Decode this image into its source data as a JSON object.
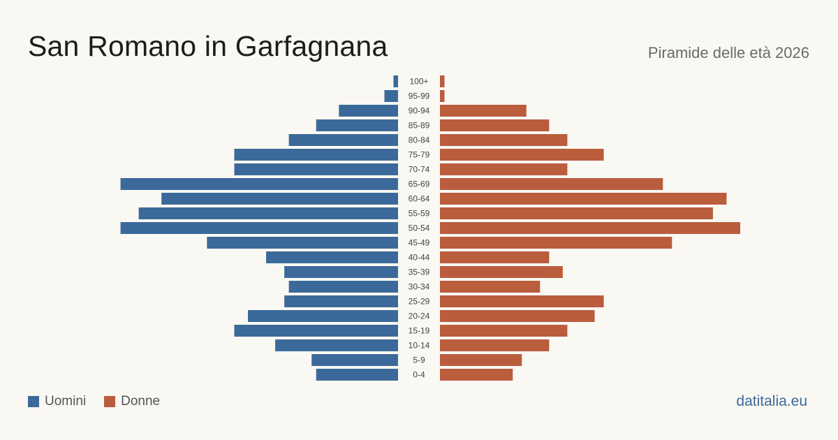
{
  "header": {
    "title": "San Romano in Garfagnana",
    "subtitle": "Piramide delle età 2026"
  },
  "legend": {
    "men_label": "Uomini",
    "women_label": "Donne"
  },
  "footer": {
    "source": "datitalia.eu"
  },
  "colors": {
    "men": "#3b6a9a",
    "women": "#b95d3d",
    "background": "#faf8f3"
  },
  "chart_data": {
    "type": "bar",
    "orientation": "horizontal-pyramid",
    "title": "San Romano in Garfagnana",
    "subtitle": "Piramide delle età 2026",
    "categories": [
      "100+",
      "95-99",
      "90-94",
      "85-89",
      "80-84",
      "75-79",
      "70-74",
      "65-69",
      "60-64",
      "55-59",
      "50-54",
      "45-49",
      "40-44",
      "35-39",
      "30-34",
      "25-29",
      "20-24",
      "15-19",
      "10-14",
      "5-9",
      "0-4"
    ],
    "series": [
      {
        "name": "Uomini",
        "values": [
          1,
          3,
          13,
          18,
          24,
          36,
          36,
          61,
          52,
          57,
          61,
          42,
          29,
          25,
          24,
          25,
          33,
          36,
          27,
          19,
          18
        ]
      },
      {
        "name": "Donne",
        "values": [
          1,
          1,
          19,
          24,
          28,
          36,
          28,
          49,
          63,
          60,
          66,
          51,
          24,
          27,
          22,
          36,
          34,
          28,
          24,
          18,
          16
        ]
      }
    ],
    "xlim": [
      0,
      66
    ],
    "grid": false,
    "legend_position": "bottom-left"
  }
}
